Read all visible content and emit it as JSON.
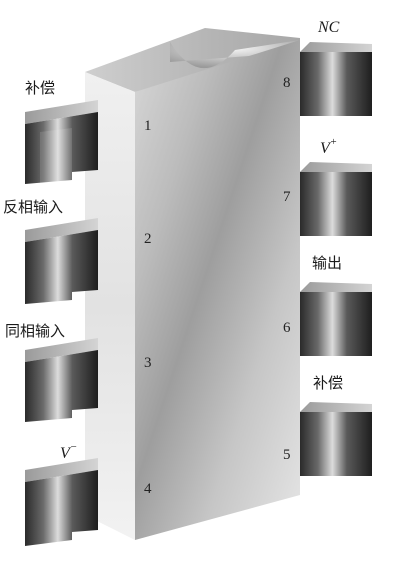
{
  "diagram": {
    "left_pins": [
      {
        "number": "1",
        "label": "补偿"
      },
      {
        "number": "2",
        "label": "反相输入"
      },
      {
        "number": "3",
        "label": "同相输入"
      },
      {
        "number": "4",
        "label_main": "V",
        "label_sup": "−"
      }
    ],
    "right_pins": [
      {
        "number": "8",
        "label": "NC"
      },
      {
        "number": "7",
        "label_main": "V",
        "label_sup": "+"
      },
      {
        "number": "6",
        "label": "输出"
      },
      {
        "number": "5",
        "label": "补偿"
      }
    ]
  }
}
